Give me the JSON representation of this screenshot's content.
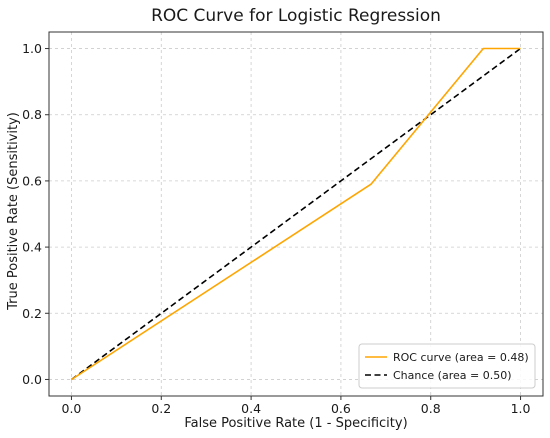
{
  "chart_data": {
    "type": "line",
    "title": "ROC Curve for Logistic Regression",
    "xlabel": "False Positive Rate (1 - Specificity)",
    "ylabel": "True Positive Rate (Sensitivity)",
    "xlim": [
      -0.05,
      1.05
    ],
    "ylim": [
      -0.05,
      1.05
    ],
    "xticks": [
      "0.0",
      "0.2",
      "0.4",
      "0.6",
      "0.8",
      "1.0"
    ],
    "yticks": [
      "0.0",
      "0.2",
      "0.4",
      "0.6",
      "0.8",
      "1.0"
    ],
    "grid": true,
    "legend_position": "bottom-right",
    "series": [
      {
        "name": "ROC curve (area = 0.48)",
        "color": "#FFA500",
        "style": "solid",
        "x": [
          0.0,
          0.667,
          0.917,
          1.0
        ],
        "y": [
          0.0,
          0.59,
          1.0,
          1.0
        ]
      },
      {
        "name": "Chance (area = 0.50)",
        "color": "#000000",
        "style": "dashed",
        "x": [
          0.0,
          1.0
        ],
        "y": [
          0.0,
          1.0
        ]
      }
    ]
  }
}
